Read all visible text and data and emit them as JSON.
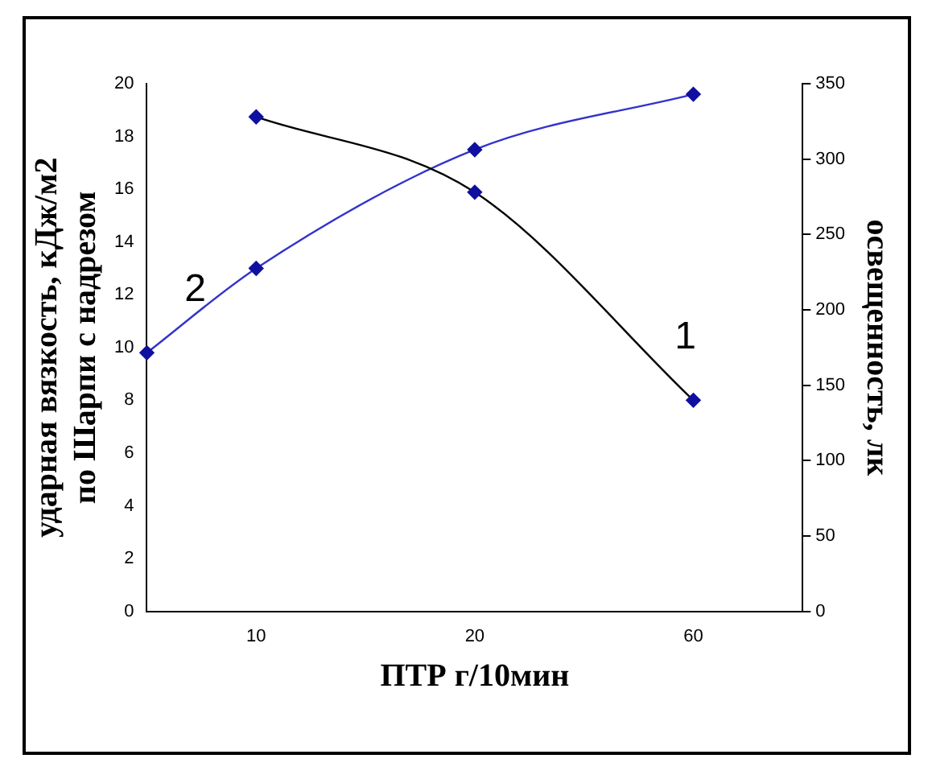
{
  "chart_data": {
    "type": "line",
    "xlabel": "ПТР г/10мин",
    "ylabel": "ударная вязкость, кДж/м2\nпо Шарпи с надрезом",
    "y2label": "освещенность, лк",
    "categories": [
      null,
      "10",
      null,
      "20",
      null,
      "60",
      null
    ],
    "series": [
      {
        "name": "1",
        "color": "#000000",
        "axis": "y2",
        "values": [
          null,
          328,
          null,
          278,
          null,
          140,
          null
        ]
      },
      {
        "name": "2",
        "color": "#3333cc",
        "axis": "y",
        "values": [
          9.8,
          13,
          null,
          17.5,
          null,
          19.6,
          null
        ]
      }
    ],
    "ylim": [
      0,
      20
    ],
    "yticks": [
      0,
      2,
      4,
      6,
      8,
      10,
      12,
      14,
      16,
      18,
      20
    ],
    "y2lim": [
      0,
      350
    ],
    "y2ticks": [
      0,
      50,
      100,
      150,
      200,
      250,
      300,
      350
    ],
    "grid": false,
    "legend": false,
    "marker": "diamond",
    "line_style": "solid"
  }
}
